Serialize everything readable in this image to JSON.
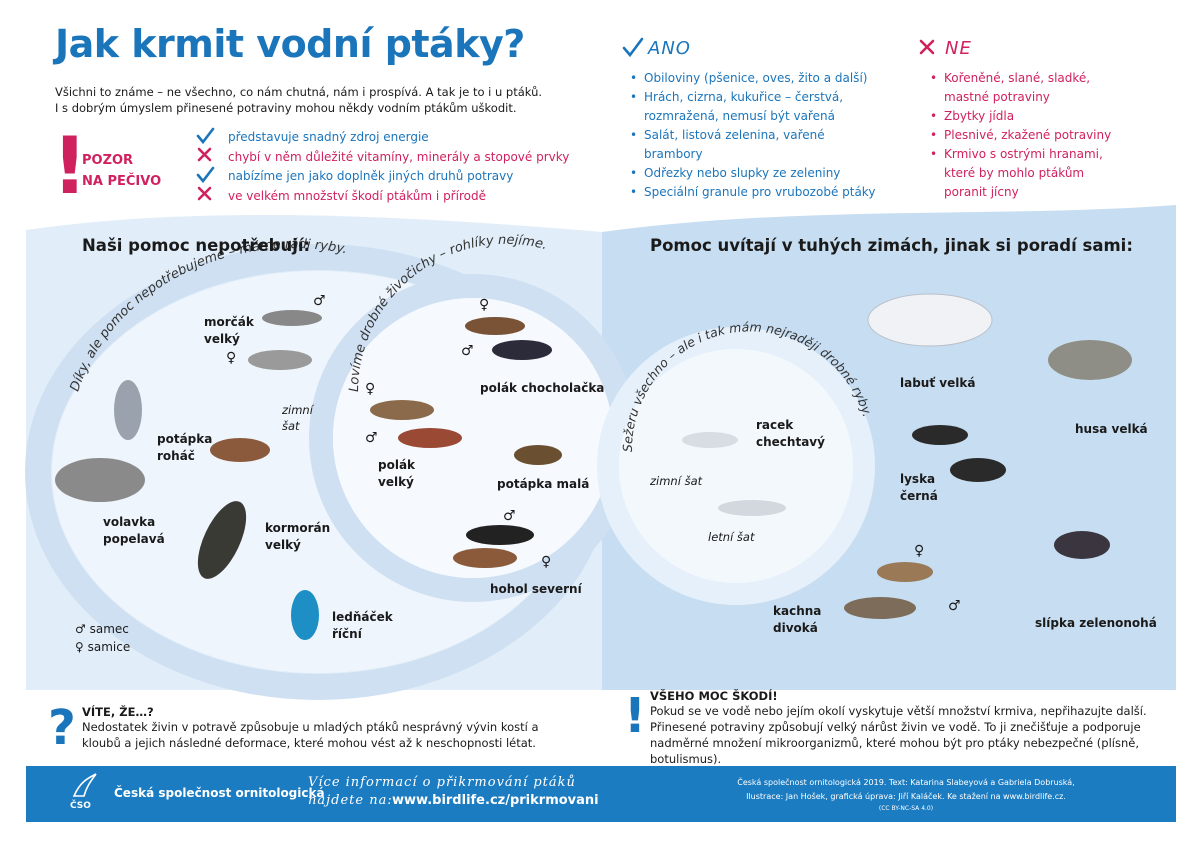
{
  "header": {
    "title": "Jak krmit vodní ptáky?",
    "intro": [
      "Všichni to známe – ne všechno, co nám chutná, nám i prospívá. A tak je to i u ptáků.",
      "I s dobrým úmyslem přinesené potraviny mohou někdy vodním ptákům uškodit."
    ]
  },
  "warning": {
    "mark": "!",
    "title": [
      "POZOR",
      "NA PEČIVO"
    ],
    "items": [
      "představuje snadný zdroj energie",
      "chybí v něm důležité vitamíny, minerály a stopové prvky",
      "nabízíme jen jako doplněk jiných druhů potravy",
      "ve velkém množství škodí ptákům i přírodě"
    ]
  },
  "ano": {
    "title": "ANO",
    "items": [
      "Obiloviny (pšenice, oves, žito a další)",
      "Hrách, cizrna, kukuřice – čerstvá, rozmražená, nemusí být vařená",
      "Salát, listová zelenina, vařené brambory",
      "Odřezky nebo slupky ze zeleniny",
      "Speciální granule pro vrubozobé ptáky"
    ]
  },
  "ne": {
    "title": "NE",
    "items": [
      "Kořeněné, slané, sladké, mastné potraviny",
      "Zbytky jídla",
      "Plesnivé, zkažené potraviny",
      "Krmivo s ostrými hranami, které by mohlo ptákům poranit jícny"
    ]
  },
  "left": {
    "heading": "Naši pomoc nepotřebují:",
    "arc_outer": "Díky, ale pomoc nepotřebujeme – máme rádi ryby.",
    "arc_inner": "Lovíme drobné živočichy – rohlíky nejíme.",
    "birds": [
      {
        "name": "morčák velký",
        "marks": [
          "♂",
          "♀"
        ]
      },
      {
        "name": "volavka popelavá"
      },
      {
        "name": "potápka roháč",
        "note": "zimní šat"
      },
      {
        "name": "kormorán velký"
      },
      {
        "name": "ledňáček říční"
      },
      {
        "name": "polák chocholačka",
        "marks": [
          "♀",
          "♂"
        ]
      },
      {
        "name": "polák velký",
        "marks": [
          "♀",
          "♂"
        ]
      },
      {
        "name": "potápka malá"
      },
      {
        "name": "hohol severní",
        "marks": [
          "♂",
          "♀"
        ]
      }
    ],
    "legend": [
      {
        "symbol": "♂",
        "text": "samec"
      },
      {
        "symbol": "♀",
        "text": "samice"
      }
    ]
  },
  "right": {
    "heading": "Pomoc uvítají v tuhých zimách, jinak si poradí sami:",
    "arc": "Sežeru všechno – ale i tak mám nejraději drobné ryby.",
    "birds": [
      {
        "name": "racek chechtavý",
        "notes": [
          "zimní šat",
          "letní šat"
        ]
      },
      {
        "name": "labuť velká"
      },
      {
        "name": "husa velká"
      },
      {
        "name": "lyska černá"
      },
      {
        "name": "kachna divoká",
        "marks": [
          "♀",
          "♂"
        ]
      },
      {
        "name": "slípka zelenonohá"
      }
    ]
  },
  "notes": [
    {
      "mark": "?",
      "title": "VÍTE, ŽE…?",
      "text": "Nedostatek živin v potravě způsobuje u mladých ptáků nesprávný vývin kostí a kloubů a jejich následné deformace, které mohou vést až k neschopnosti létat."
    },
    {
      "mark": "!",
      "title": "VŠEHO MOC ŠKODÍ!",
      "text": "Pokud se ve vodě nebo jejím okolí vyskytuje větší množství krmiva, nepřihazujte další. Přinesené potraviny způsobují velký nárůst živin ve vodě. To ji znečišťuje a podporuje nadměrné množení mikroorganizmů, které mohou být pro ptáky nebezpečné (plísně, botulismus)."
    }
  ],
  "footer": {
    "logo": "ČSO",
    "org": "Česká společnost ornitologická",
    "more": [
      "Více informací o přikrmování ptáků",
      "najdete na:"
    ],
    "url": "www.birdlife.cz/prikrmovani",
    "credits": [
      "Česká společnost ornitologická 2019. Text: Katarina Slabeyová a Gabriela Dobruská,",
      "Ilustrace: Jan Hošek, grafická úprava: Jiří Kaláček. Ke stažení na www.birdlife.cz.",
      "(CC BY-NC-SA 4.0)"
    ]
  }
}
